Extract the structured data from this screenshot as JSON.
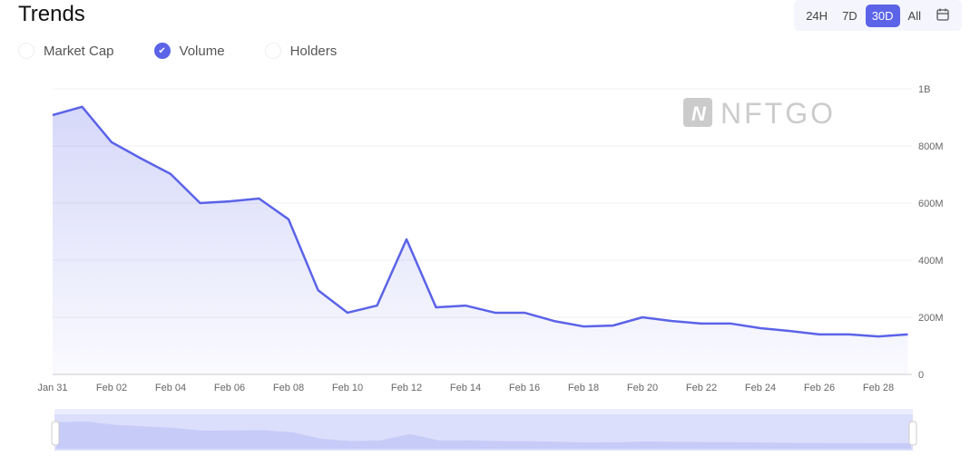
{
  "title": "Trends",
  "metrics": [
    {
      "label": "Market Cap",
      "checked": false
    },
    {
      "label": "Volume",
      "checked": true
    },
    {
      "label": "Holders",
      "checked": false
    }
  ],
  "ranges": [
    "24H",
    "7D",
    "30D",
    "All"
  ],
  "active_range": "30D",
  "watermark": "NFTGO",
  "chart_data": {
    "type": "area",
    "series": [
      {
        "name": "Volume",
        "values": [
          908,
          937,
          813,
          756,
          702,
          600,
          606,
          616,
          543,
          295,
          216,
          241,
          473,
          235,
          241,
          216,
          216,
          187,
          168,
          171,
          200,
          187,
          178,
          178,
          162,
          152,
          140,
          140,
          133,
          140
        ]
      }
    ],
    "x": [
      "Jan 31",
      "Feb 01",
      "Feb 02",
      "Feb 03",
      "Feb 04",
      "Feb 05",
      "Feb 06",
      "Feb 07",
      "Feb 08",
      "Feb 09",
      "Feb 10",
      "Feb 11",
      "Feb 12",
      "Feb 13",
      "Feb 14",
      "Feb 15",
      "Feb 16",
      "Feb 17",
      "Feb 18",
      "Feb 19",
      "Feb 20",
      "Feb 21",
      "Feb 22",
      "Feb 23",
      "Feb 24",
      "Feb 25",
      "Feb 26",
      "Feb 27",
      "Feb 28",
      "Feb 29"
    ],
    "x_tick_labels": [
      "Jan 31",
      "Feb 02",
      "Feb 04",
      "Feb 06",
      "Feb 08",
      "Feb 10",
      "Feb 12",
      "Feb 14",
      "Feb 16",
      "Feb 18",
      "Feb 20",
      "Feb 22",
      "Feb 24",
      "Feb 26",
      "Feb 28"
    ],
    "y_tick_values": [
      0,
      200,
      400,
      600,
      800,
      1000
    ],
    "y_tick_labels": [
      "0",
      "200M",
      "400M",
      "600M",
      "800M",
      "1B"
    ],
    "units": "M",
    "ylim": [
      0,
      1000
    ],
    "grid": true,
    "color": "#5b63e8"
  }
}
